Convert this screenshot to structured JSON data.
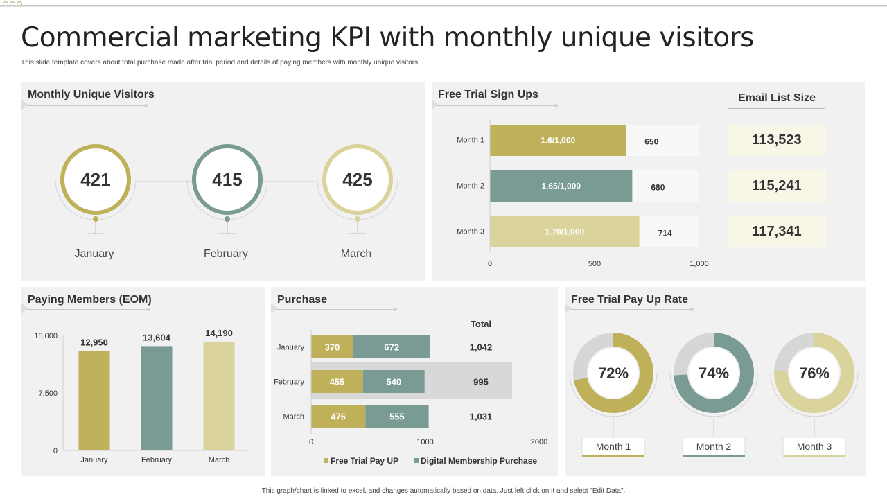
{
  "title": "Commercial marketing KPI with monthly unique visitors",
  "subtitle": "This slide template covers about total purchase made after trial period and details of paying members with monthly unique visitors",
  "footer": "This graph/chart is linked to excel, and changes automatically based on data. Just left click on it and select \"Edit Data\".",
  "colors": {
    "olive": "#bfb05a",
    "teal": "#7a9a94",
    "sand": "#dad39c",
    "panel": "#f1f1f1",
    "grey": "#d6d6d6"
  },
  "visitors": {
    "title": "Monthly Unique Visitors",
    "items": [
      {
        "value": "421",
        "label": "January",
        "color": "#bfb05a"
      },
      {
        "value": "415",
        "label": "February",
        "color": "#7a9a94"
      },
      {
        "value": "425",
        "label": "March",
        "color": "#dad39c"
      }
    ]
  },
  "email": {
    "title": "Email List Size",
    "values": [
      "113,523",
      "115,241",
      "117,341"
    ]
  },
  "chart_data": [
    {
      "type": "bar",
      "orientation": "horizontal",
      "title": "Free Trial Sign Ups",
      "categories": [
        "Month 1",
        "Month 2",
        "Month 3"
      ],
      "values": [
        650,
        680,
        714
      ],
      "bar_labels": [
        "1.6/1,000",
        "1,65/1,000",
        "1.70/1,000"
      ],
      "value_labels": [
        "650",
        "680",
        "714"
      ],
      "xlim": [
        0,
        1000
      ],
      "ticks": [
        "0",
        "500",
        "1,000"
      ],
      "colors": [
        "#bfb05a",
        "#7a9a94",
        "#dad39c"
      ]
    },
    {
      "type": "bar",
      "title": "Paying Members (EOM)",
      "categories": [
        "January",
        "February",
        "March"
      ],
      "values": [
        12950,
        13604,
        14190
      ],
      "value_labels": [
        "12,950",
        "13,604",
        "14,190"
      ],
      "ylim": [
        0,
        15000
      ],
      "ticks": [
        "0",
        "7,500",
        "15,000"
      ],
      "colors": [
        "#bfb05a",
        "#7a9a94",
        "#dad39c"
      ]
    },
    {
      "type": "bar",
      "orientation": "horizontal",
      "stacked": true,
      "title": "Purchase",
      "categories": [
        "January",
        "February",
        "March"
      ],
      "series": [
        {
          "name": "Free Trial Pay UP",
          "values": [
            370,
            455,
            476
          ],
          "labels": [
            "370",
            "455",
            "476"
          ],
          "color": "#bfb05a"
        },
        {
          "name": "Digital Membership Purchase",
          "values": [
            672,
            540,
            555
          ],
          "labels": [
            "672",
            "540",
            "555"
          ],
          "color": "#7a9a94"
        }
      ],
      "total_header": "Total",
      "totals": [
        "1,042",
        "995",
        "1,031"
      ],
      "xlim": [
        0,
        2000
      ],
      "ticks": [
        "0",
        "1000",
        "2000"
      ]
    },
    {
      "type": "pie",
      "donut": true,
      "title": "Free Trial Pay Up Rate",
      "categories": [
        "Month 1",
        "Month 2",
        "Month 3"
      ],
      "values": [
        72,
        74,
        76
      ],
      "value_labels": [
        "72%",
        "74%",
        "76%"
      ],
      "colors": [
        "#bfb05a",
        "#7a9a94",
        "#dad39c"
      ]
    }
  ]
}
